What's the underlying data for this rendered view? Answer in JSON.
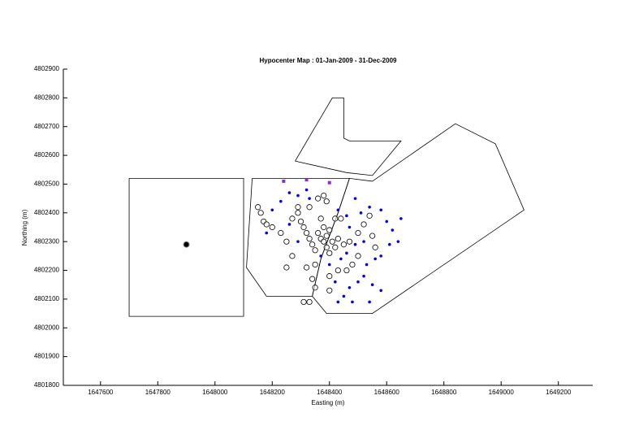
{
  "chart_data": {
    "type": "scatter",
    "title": "Hypocenter Map : 01-Jan-2009 - 31-Dec-2009",
    "x_label": "Easting (m)",
    "y_label": "Northing (m)",
    "xlim": [
      1647470,
      1649320
    ],
    "ylim": [
      4801800,
      4802900
    ],
    "xticks": [
      1647600,
      1647800,
      1648000,
      1648200,
      1648400,
      1648600,
      1648800,
      1649000,
      1649200
    ],
    "yticks": [
      4801800,
      4801900,
      4802000,
      4802100,
      4802200,
      4802300,
      4802400,
      4802500,
      4802600,
      4802700,
      4802800,
      4802900
    ],
    "polygons": [
      {
        "color": "#000000",
        "x": [
          1647700,
          1648100,
          1648100,
          1647700,
          1647700
        ],
        "y": [
          4802520,
          4802520,
          4802040,
          4802040,
          4802520
        ]
      },
      {
        "color": "#000000",
        "x": [
          1648280,
          1648410,
          1648450,
          1648450,
          1648470,
          1648650,
          1648550,
          1648460,
          1648280
        ],
        "y": [
          4802580,
          4802800,
          4802800,
          4802660,
          4802650,
          4802650,
          4802530,
          4802540,
          4802580
        ]
      },
      {
        "color": "#000000",
        "x": [
          1648130,
          1648470,
          1648430,
          1648370,
          1648340,
          1648180,
          1648110,
          1648130
        ],
        "y": [
          4802520,
          4802520,
          4802400,
          4802240,
          4802110,
          4802110,
          4802210,
          4802520
        ]
      },
      {
        "color": "#000000",
        "x": [
          1648550,
          1648840,
          1648980,
          1649080,
          1648550,
          1648390,
          1648340,
          1648370,
          1648430,
          1648470,
          1648550
        ],
        "y": [
          4802510,
          4802710,
          4802640,
          4802410,
          4802050,
          4802050,
          4802110,
          4802240,
          4802400,
          4802520,
          4802510
        ]
      }
    ],
    "points": [
      {
        "marker": "circle",
        "color": "#000000",
        "x": [
          1648150,
          1648160,
          1648170,
          1648180,
          1648200,
          1648230,
          1648250,
          1648270,
          1648290,
          1648300,
          1648310,
          1648320,
          1648330,
          1648340,
          1648350,
          1648360,
          1648370,
          1648380,
          1648390,
          1648400,
          1648410,
          1648420,
          1648380,
          1648390,
          1648400,
          1648370,
          1648390,
          1648380,
          1648360,
          1648420,
          1648430,
          1648450,
          1648470,
          1648500,
          1648520,
          1648550,
          1648540,
          1648560,
          1648480,
          1648460,
          1648430,
          1648400,
          1648350,
          1648320,
          1648270,
          1648250,
          1648340,
          1648350,
          1648330,
          1648310,
          1648400,
          1648290,
          1648330,
          1648440,
          1648500
        ],
        "y": [
          4802420,
          4802400,
          4802370,
          4802360,
          4802350,
          4802330,
          4802300,
          4802380,
          4802400,
          4802370,
          4802350,
          4802330,
          4802310,
          4802290,
          4802270,
          4802330,
          4802310,
          4802300,
          4802320,
          4802340,
          4802300,
          4802280,
          4802350,
          4802280,
          4802260,
          4802380,
          4802440,
          4802460,
          4802450,
          4802380,
          4802310,
          4802290,
          4802300,
          4802330,
          4802360,
          4802320,
          4802390,
          4802280,
          4802220,
          4802200,
          4802200,
          4802180,
          4802220,
          4802210,
          4802250,
          4802210,
          4802170,
          4802140,
          4802090,
          4802090,
          4802130,
          4802420,
          4802420,
          4802380,
          4802250
        ]
      },
      {
        "marker": "dot",
        "color": "#0000ee",
        "x": [
          1648200,
          1648230,
          1648180,
          1648260,
          1648290,
          1648320,
          1648330,
          1648430,
          1648460,
          1648490,
          1648510,
          1648540,
          1648580,
          1648600,
          1648620,
          1648640,
          1648610,
          1648650,
          1648580,
          1648560,
          1648530,
          1648520,
          1648550,
          1648580,
          1648500,
          1648470,
          1648450,
          1648430,
          1648480,
          1648540,
          1648440,
          1648460,
          1648490,
          1648520,
          1648370,
          1648400,
          1648420,
          1648290,
          1648260,
          1648470
        ],
        "y": [
          4802410,
          4802440,
          4802330,
          4802470,
          4802460,
          4802480,
          4802450,
          4802410,
          4802390,
          4802450,
          4802400,
          4802420,
          4802410,
          4802370,
          4802340,
          4802300,
          4802290,
          4802380,
          4802250,
          4802240,
          4802220,
          4802180,
          4802150,
          4802130,
          4802160,
          4802140,
          4802110,
          4802090,
          4802090,
          4802090,
          4802240,
          4802260,
          4802290,
          4802300,
          4802250,
          4802220,
          4802160,
          4802300,
          4802360,
          4802350
        ]
      },
      {
        "marker": "square",
        "color": "#8a2be2",
        "x": [
          1648240,
          1648320,
          1648400
        ],
        "y": [
          4802510,
          4802515,
          4802505
        ]
      },
      {
        "marker": "filled",
        "color": "#000000",
        "x": [
          1647900
        ],
        "y": [
          4802290
        ]
      }
    ]
  }
}
